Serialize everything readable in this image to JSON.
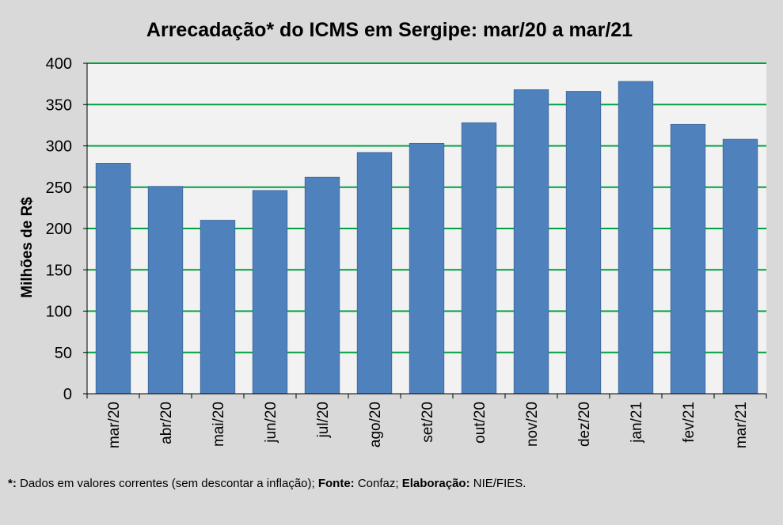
{
  "chart_data": {
    "type": "bar",
    "title": "Arrecadação* do ICMS em Sergipe: mar/20 a mar/21",
    "xlabel": "",
    "ylabel": "Milhões de R$",
    "categories": [
      "mar/20",
      "abr/20",
      "mai/20",
      "jun/20",
      "jul/20",
      "ago/20",
      "set/20",
      "out/20",
      "nov/20",
      "dez/20",
      "jan/21",
      "fev/21",
      "mar/21"
    ],
    "values": [
      279,
      251,
      210,
      246,
      262,
      292,
      303,
      328,
      368,
      366,
      378,
      326,
      308
    ],
    "ylim": [
      0,
      400
    ],
    "yticks": [
      0,
      50,
      100,
      150,
      200,
      250,
      300,
      350,
      400
    ],
    "grid": true,
    "legend": "none",
    "colors": {
      "bar": "#4f81bd",
      "bar_edge": "#3c6595",
      "gridline": "#00a040",
      "plot_bg": "#f2f2f2",
      "page_bg": "#d9d9d9"
    }
  },
  "footnote": {
    "marker": "*:",
    "note": " Dados em valores correntes (sem descontar a inflação); ",
    "source_label": "Fonte:",
    "source": " Confaz; ",
    "credit_label": "Elaboração:",
    "credit": " NIE/FIES."
  }
}
